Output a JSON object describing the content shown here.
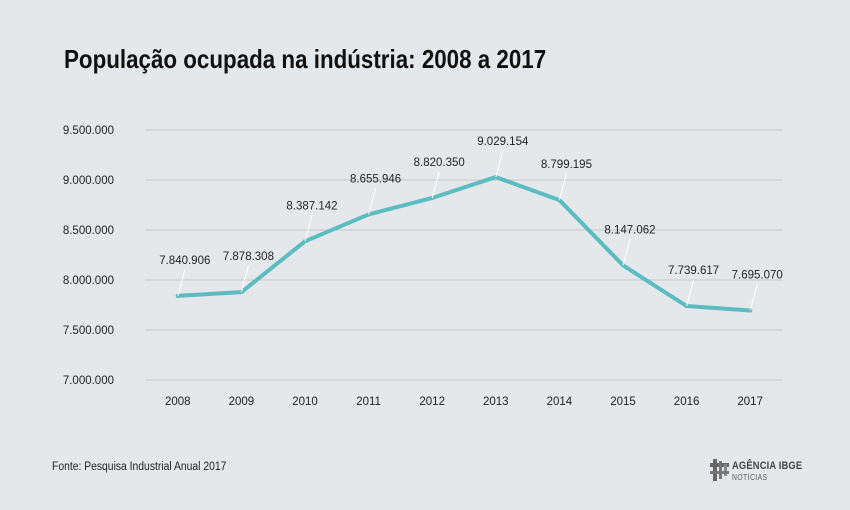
{
  "title": "População ocupada na indústria: 2008 a 2017",
  "source": "Fonte: Pesquisa Industrial Anual 2017",
  "logo": {
    "name": "AGÊNCIA IBGE",
    "sub": "NOTÍCIAS"
  },
  "colors": {
    "line": "#5bbcc1",
    "background": "#e5e8ea",
    "grid": "#c4c8cb"
  },
  "chart_data": {
    "type": "line",
    "title": "População ocupada na indústria: 2008 a 2017",
    "xlabel": "",
    "ylabel": "",
    "categories": [
      "2008",
      "2009",
      "2010",
      "2011",
      "2012",
      "2013",
      "2014",
      "2015",
      "2016",
      "2017"
    ],
    "values": [
      7840906,
      7878308,
      8387142,
      8655946,
      8820350,
      9029154,
      8799195,
      8147062,
      7739617,
      7695070
    ],
    "value_labels": [
      "7.840.906",
      "7.878.308",
      "8.387.142",
      "8.655.946",
      "8.820.350",
      "9.029.154",
      "8.799.195",
      "8.147.062",
      "7.739.617",
      "7.695.070"
    ],
    "ylim": [
      7000000,
      9500000
    ],
    "y_ticks": [
      7000000,
      7500000,
      8000000,
      8500000,
      9000000,
      9500000
    ],
    "y_tick_labels": [
      "7.000.000",
      "7.500.000",
      "8.000.000",
      "8.500.000",
      "9.000.000",
      "9.500.000"
    ],
    "grid": true,
    "legend": "none"
  }
}
